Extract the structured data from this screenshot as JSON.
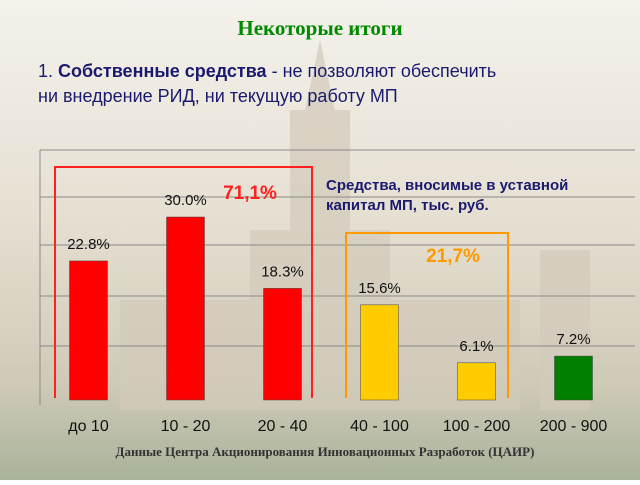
{
  "chart_data": {
    "type": "bar",
    "title": "Некоторые итоги",
    "heading": {
      "number": "1.",
      "bold": "Собственные средства",
      "line1": "- не позволяют обеспечить",
      "line2": "ни внедрение РИД, ни текущую работу МП"
    },
    "note": [
      "Средства, вносимые в уставной",
      "капитал МП,  тыс. руб."
    ],
    "categories": [
      "до 10",
      "10 - 20",
      "20 - 40",
      "40 - 100",
      "100 - 200",
      "200 - 900"
    ],
    "values": [
      22.8,
      30.0,
      18.3,
      15.6,
      6.1,
      7.2
    ],
    "value_labels": [
      "22.8%",
      "30.0%",
      "18.3%",
      "15.6%",
      "6.1%",
      "7.2%"
    ],
    "colors": [
      "#ff0000",
      "#ff0000",
      "#ff0000",
      "#ffcc00",
      "#ffcc00",
      "#008000"
    ],
    "ylim": [
      0,
      40
    ],
    "annotations": [
      {
        "text": "71,1%",
        "color": "#ff2020"
      },
      {
        "text": "21,7%",
        "color": "#ff9900"
      }
    ],
    "source": "Данные Центра Акционирования Инновационных Разработок (ЦАИР)"
  }
}
